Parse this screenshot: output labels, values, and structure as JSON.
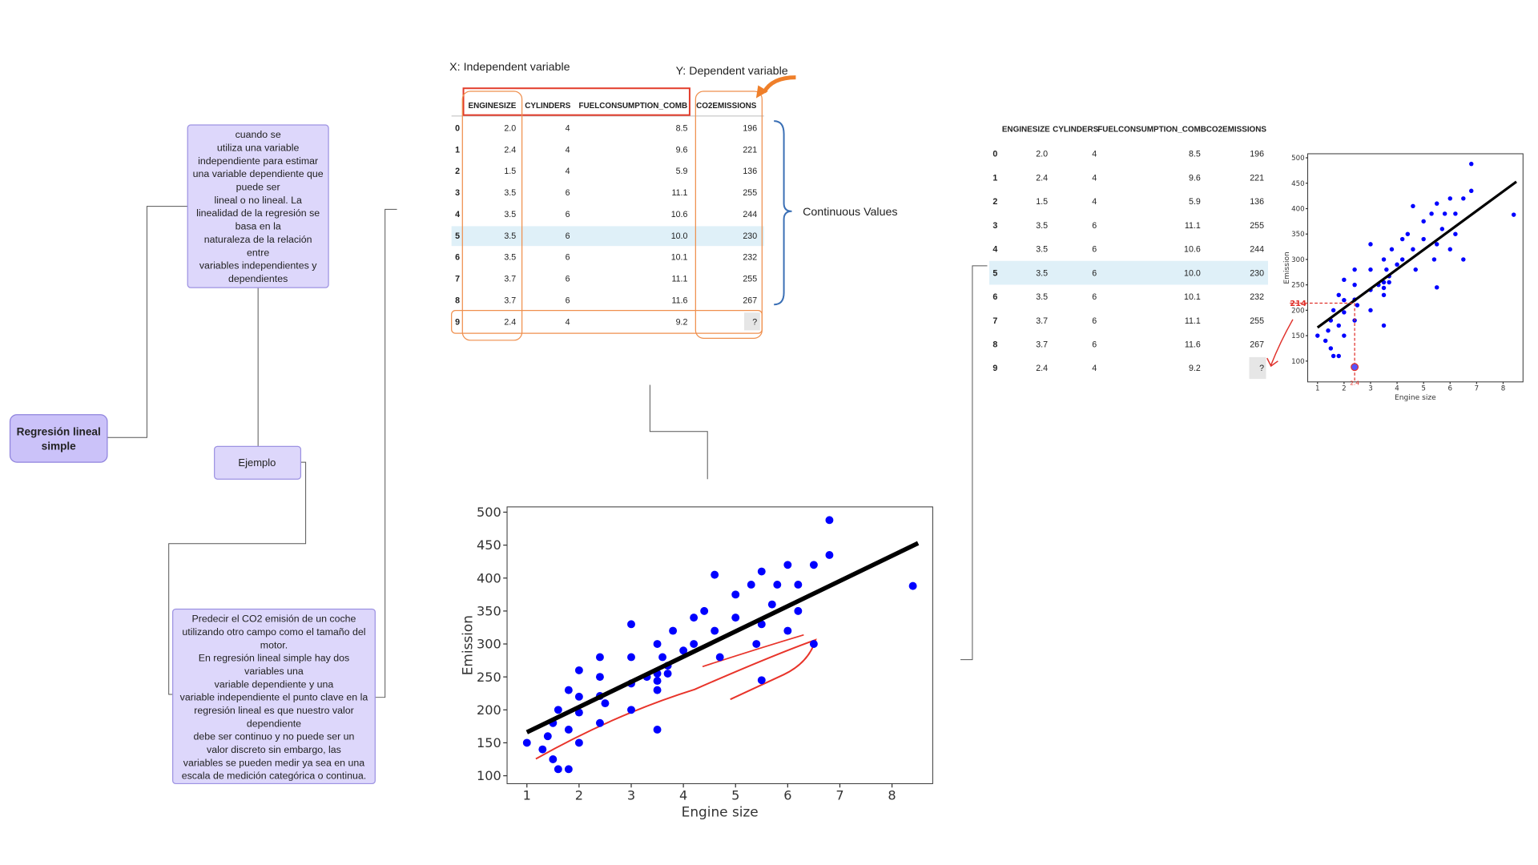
{
  "nodes": [
    {
      "label": "Regresión lineal\nsimple"
    },
    {
      "label": "cuando se\nutiliza una variable\nindependiente para estimar\nuna variable dependiente que\npuede ser\nlineal o no lineal. La\nlinealidad de la regresión se\nbasa en la\nnaturaleza de la relación\nentre\nvariables independientes y\ndependientes"
    },
    {
      "label": "Ejemplo"
    },
    {
      "label": "Predecir el CO2 emisión de un coche\nutilizando otro campo como el tamaño del\nmotor.\nEn regresión lineal simple hay dos\nvariables una\nvariable dependiente y una\nvariable independiente el punto clave en la\nregresión lineal es que nuestro valor\ndependiente\ndebe ser continuo y no puede ser un\nvalor discreto sin embargo, las\nvariables se pueden medir ya sea en una\nescala de medición categórica o continua."
    }
  ],
  "table": {
    "x_label": "X: Independent variable",
    "y_label": "Y: Dependent variable",
    "note": "Continuous Values",
    "columns": [
      "ENGINESIZE",
      "CYLINDERS",
      "FUELCONSUMPTION_COMB",
      "CO2EMISSIONS"
    ],
    "rows": [
      [
        "0",
        "2.0",
        "4",
        "8.5",
        "196"
      ],
      [
        "1",
        "2.4",
        "4",
        "9.6",
        "221"
      ],
      [
        "2",
        "1.5",
        "4",
        "5.9",
        "136"
      ],
      [
        "3",
        "3.5",
        "6",
        "11.1",
        "255"
      ],
      [
        "4",
        "3.5",
        "6",
        "10.6",
        "244"
      ],
      [
        "5",
        "3.5",
        "6",
        "10.0",
        "230"
      ],
      [
        "6",
        "3.5",
        "6",
        "10.1",
        "232"
      ],
      [
        "7",
        "3.7",
        "6",
        "11.1",
        "255"
      ],
      [
        "8",
        "3.7",
        "6",
        "11.6",
        "267"
      ],
      [
        "9",
        "2.4",
        "4",
        "9.2",
        "?"
      ]
    ]
  },
  "chart_data": [
    {
      "type": "scatter",
      "x_label": "Engine size",
      "y_label": "Emission",
      "color": "#0000ff",
      "line_color": "#000000",
      "xlim": [
        0.62,
        8.78
      ],
      "ylim": [
        88,
        508
      ],
      "xticks": [
        1,
        2,
        3,
        4,
        5,
        6,
        7,
        8
      ],
      "yticks": [
        100,
        150,
        200,
        250,
        300,
        350,
        400,
        450,
        500
      ],
      "x": [
        1.0,
        1.3,
        1.4,
        1.5,
        1.5,
        1.6,
        1.6,
        1.8,
        1.8,
        1.8,
        2.0,
        2.0,
        2.0,
        2.0,
        2.4,
        2.4,
        2.4,
        2.4,
        2.5,
        3.0,
        3.0,
        3.0,
        3.0,
        3.3,
        3.5,
        3.5,
        3.5,
        3.5,
        3.5,
        3.6,
        3.7,
        3.7,
        3.8,
        4.0,
        4.2,
        4.2,
        4.4,
        4.6,
        4.6,
        4.7,
        5.0,
        5.0,
        5.3,
        5.4,
        5.5,
        5.5,
        5.5,
        5.7,
        5.8,
        6.0,
        6.0,
        6.2,
        6.2,
        6.5,
        6.5,
        6.8,
        6.8,
        8.4
      ],
      "y": [
        150,
        140,
        160,
        125,
        180,
        200,
        110,
        170,
        230,
        110,
        150,
        196,
        260,
        220,
        221,
        180,
        250,
        280,
        210,
        240,
        280,
        200,
        330,
        250,
        255,
        230,
        244,
        300,
        170,
        280,
        267,
        255,
        320,
        290,
        300,
        340,
        350,
        320,
        405,
        280,
        340,
        375,
        390,
        300,
        330,
        410,
        245,
        360,
        390,
        320,
        420,
        390,
        350,
        300,
        420,
        488,
        435,
        388
      ],
      "fit": {
        "x": [
          1.0,
          8.5
        ],
        "y": [
          166,
          453
        ]
      }
    },
    {
      "type": "scatter",
      "x_label": "Engine size",
      "y_label": "Emission",
      "xlim": [
        0.63,
        8.75
      ],
      "ylim": [
        59,
        508
      ],
      "xticks": [
        1,
        2,
        3,
        4,
        5,
        6,
        7,
        8
      ],
      "yticks": [
        100,
        150,
        200,
        250,
        300,
        350,
        400,
        450,
        500
      ],
      "marker_x": 2.4,
      "marker_y": 214
    }
  ]
}
